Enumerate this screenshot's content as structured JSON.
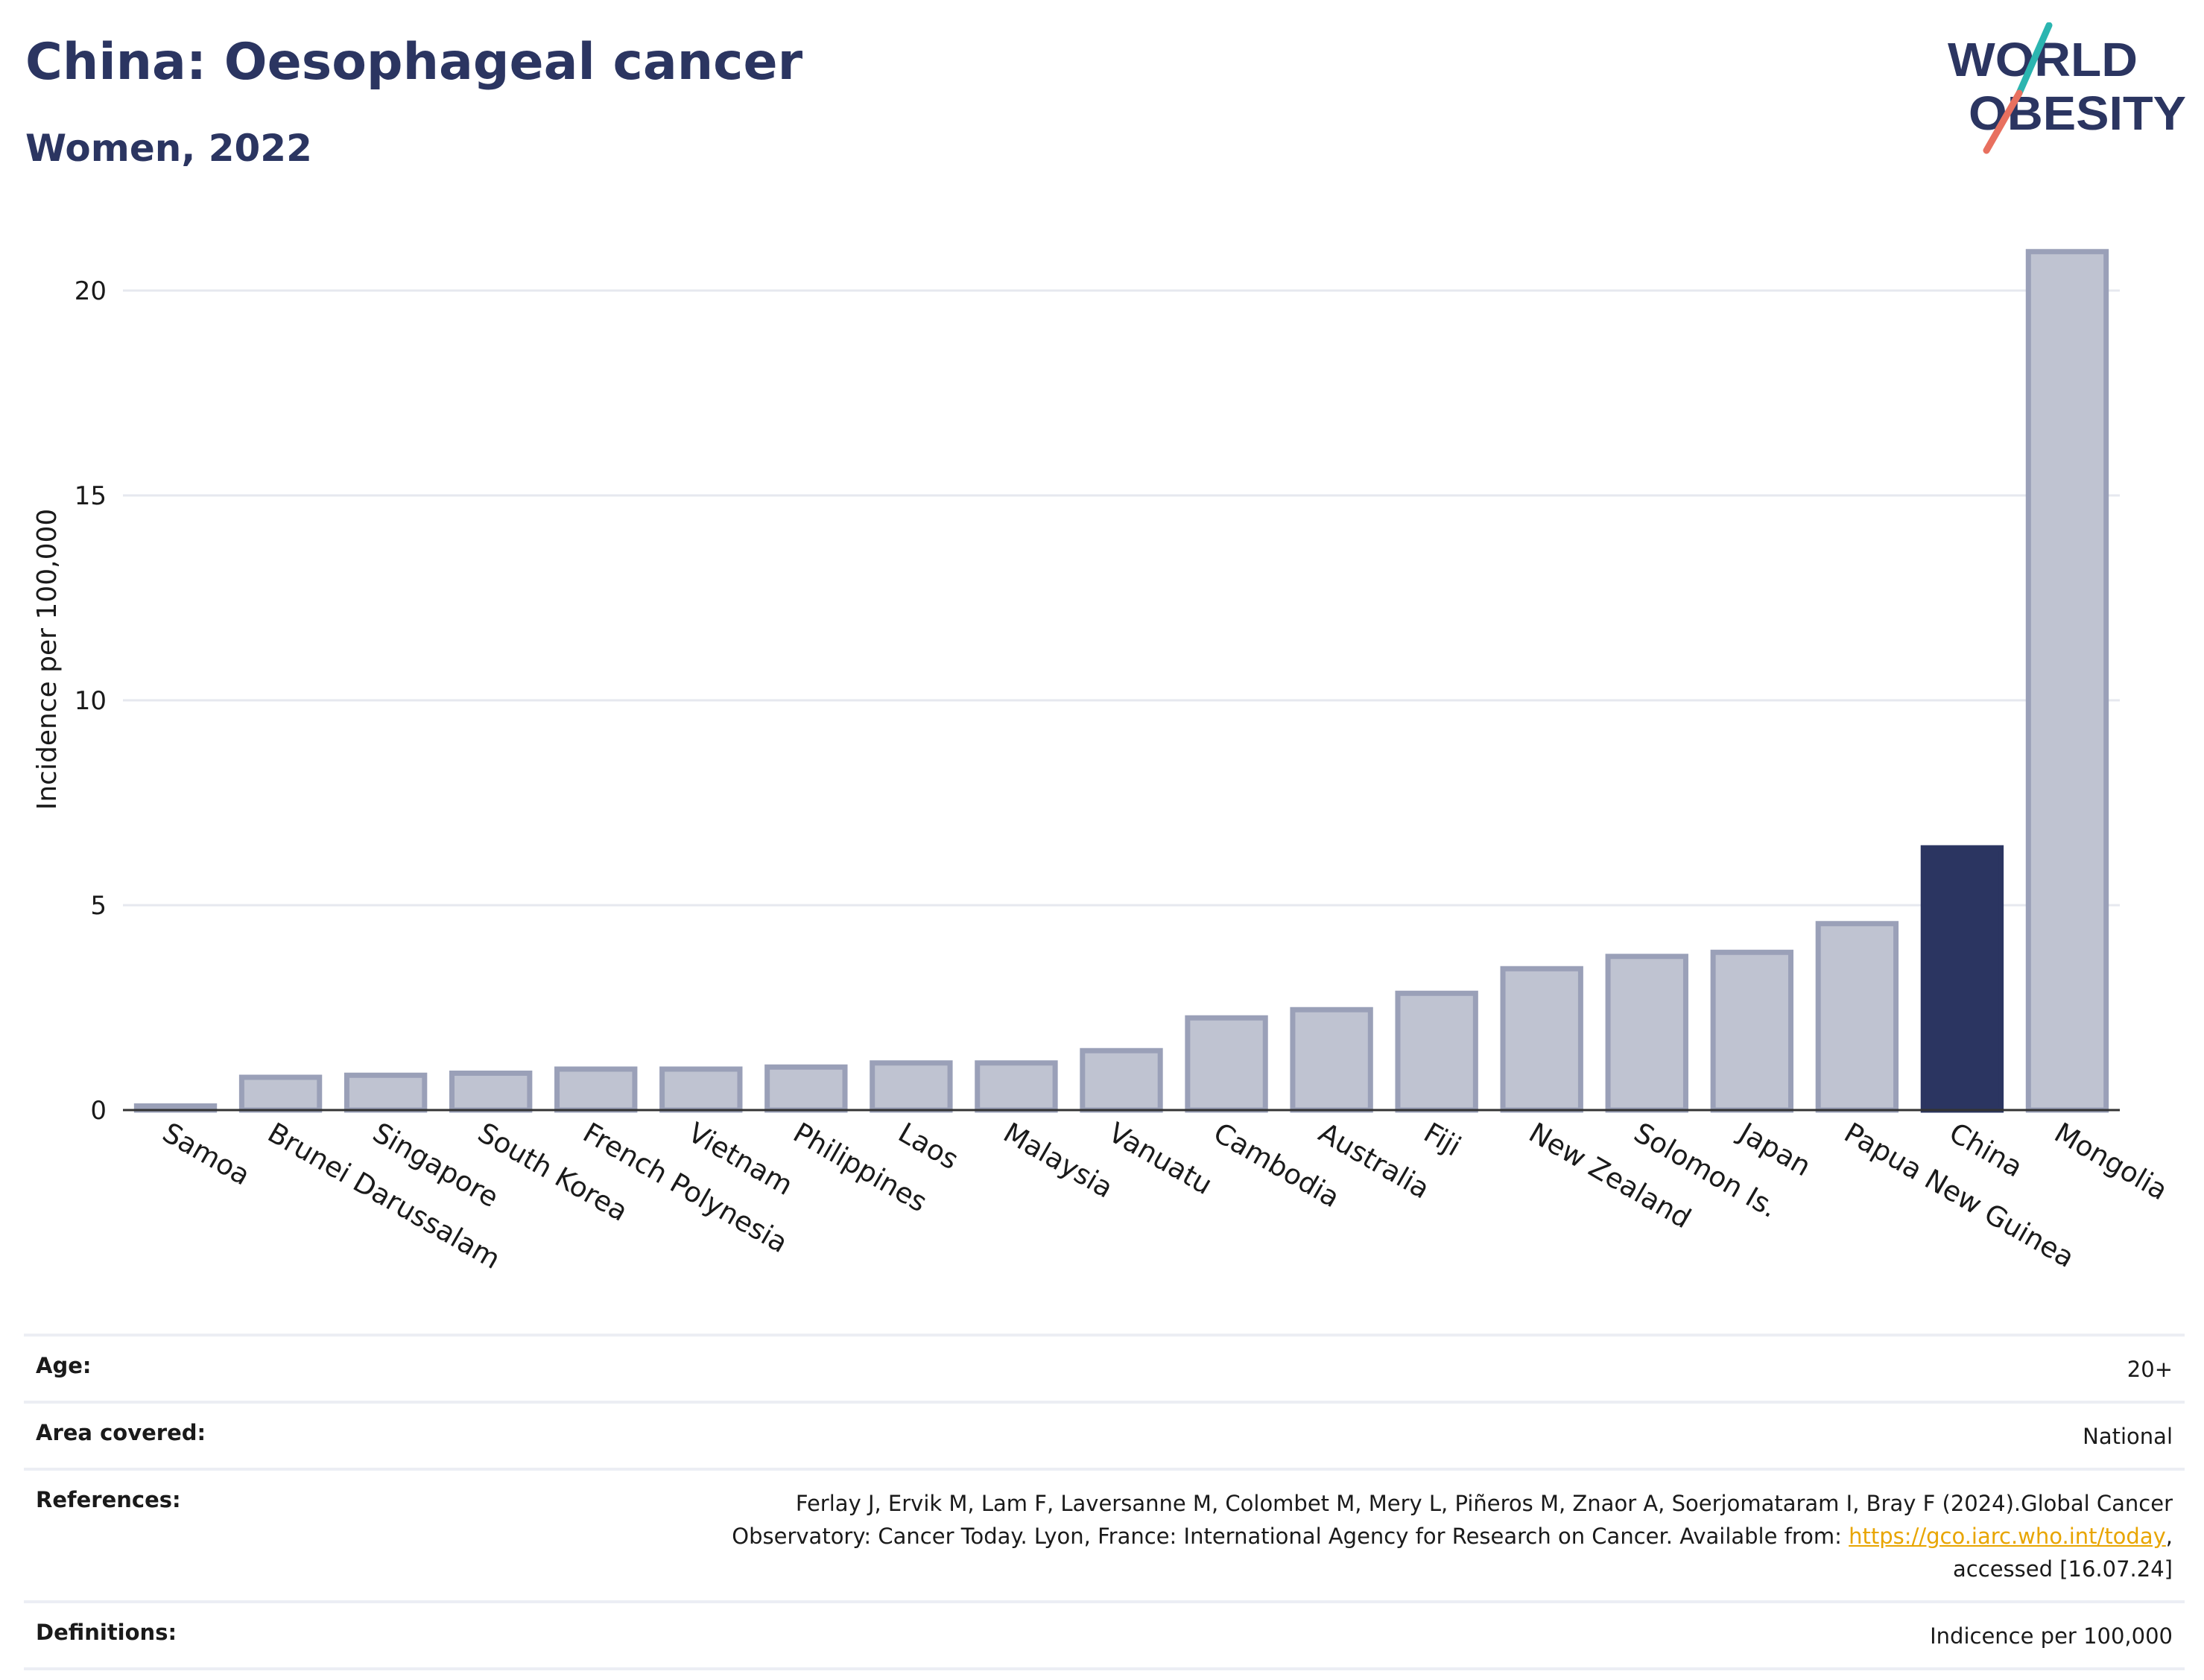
{
  "header": {
    "title": "China: Oesophageal cancer",
    "subtitle": "Women, 2022"
  },
  "logo": {
    "line1": "WORLD",
    "line2": "OBESITY"
  },
  "colors": {
    "highlight": "#2b3561",
    "bar": "#bfc3d1",
    "bar_border": "#9aa0b8",
    "link": "#e8a500",
    "logo_teal": "#2bb5b0",
    "logo_coral": "#e8705f"
  },
  "chart_data": {
    "type": "bar",
    "title": "China: Oesophageal cancer",
    "subtitle": "Women, 2022",
    "xlabel": "",
    "ylabel": "Incidence per 100,000",
    "ylim": [
      0,
      22
    ],
    "yticks": [
      0,
      5,
      10,
      15,
      20
    ],
    "grid": true,
    "highlight": "China",
    "categories": [
      "Samoa",
      "Brunei Darussalam",
      "Singapore",
      "South Korea",
      "French Polynesia",
      "Vietnam",
      "Philippines",
      "Laos",
      "Malaysia",
      "Vanuatu",
      "Cambodia",
      "Australia",
      "Fiji",
      "New Zealand",
      "Solomon Is.",
      "Japan",
      "Papua New Guinea",
      "China",
      "Mongolia"
    ],
    "values": [
      0.1,
      0.8,
      0.85,
      0.9,
      1.0,
      1.0,
      1.05,
      1.15,
      1.15,
      1.45,
      2.25,
      2.45,
      2.85,
      3.45,
      3.75,
      3.85,
      4.55,
      6.4,
      20.95
    ]
  },
  "info": {
    "age_label": "Age:",
    "age_value": "20+",
    "area_label": "Area covered:",
    "area_value": "National",
    "references_label": "References:",
    "references_line1": "Ferlay J, Ervik M, Lam F, Laversanne M, Colombet M, Mery L, Piñeros M, Znaor A, Soerjomataram I, Bray F (2024).Global Cancer",
    "references_line2_pre": "Observatory: Cancer Today. Lyon, France: International Agency for Research on Cancer. Available from: ",
    "references_link": "https://gco.iarc.who.int/today",
    "references_line2_post": ",",
    "references_line3": "accessed [16.07.24]",
    "definitions_label": "Definitions:",
    "definitions_value": "Indicence per 100,000"
  }
}
